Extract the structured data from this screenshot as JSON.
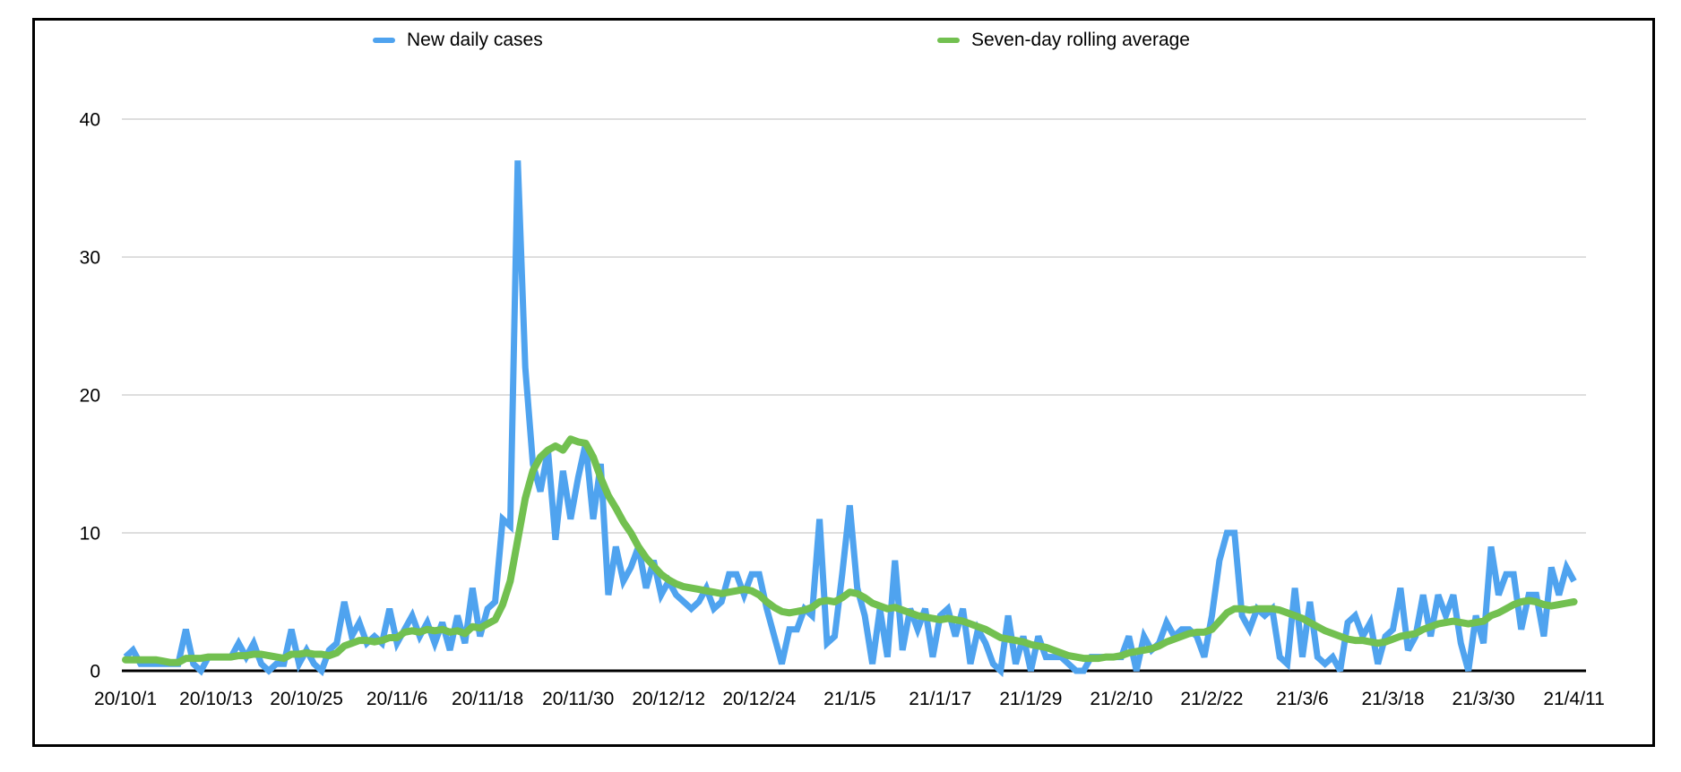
{
  "legend": {
    "daily_label": "New daily cases",
    "avg_label": "Seven-day rolling average"
  },
  "chart_data": {
    "type": "line",
    "x_start_date": "20/10/1",
    "x_end_date": "21/4/11",
    "x_tick_interval_days": 12,
    "x_tick_labels": [
      "20/10/1",
      "20/10/13",
      "20/10/25",
      "20/11/6",
      "20/11/18",
      "20/11/30",
      "20/12/12",
      "20/12/24",
      "21/1/5",
      "21/1/17",
      "21/1/29",
      "21/2/10",
      "21/2/22",
      "21/3/6",
      "21/3/18",
      "21/3/30",
      "21/4/11"
    ],
    "y_ticks": [
      0,
      10,
      20,
      30,
      40
    ],
    "ylim": [
      0,
      43.5
    ],
    "grid": "horizontal",
    "legend_position": "top",
    "background": "#ffffff",
    "gridline_color": "#d4d4d4",
    "axis_color": "#000000",
    "series": [
      {
        "name": "New daily cases",
        "color": "#4fa3ef",
        "values": [
          1,
          1.5,
          0.5,
          0.5,
          0.5,
          0.5,
          0.5,
          0.5,
          3,
          0.5,
          0,
          1,
          1,
          1,
          1,
          2,
          1,
          2,
          0.5,
          0,
          0.5,
          0.5,
          3,
          0.5,
          1.5,
          0.5,
          0,
          1.5,
          2,
          5,
          2.5,
          3.5,
          2,
          2.5,
          2,
          4.5,
          2,
          3,
          4,
          2.5,
          3.5,
          2,
          3.5,
          1.5,
          4,
          2,
          6,
          2.5,
          4.5,
          5,
          11,
          10.5,
          37,
          22,
          15,
          13,
          16,
          9.5,
          14.5,
          11,
          14,
          16.5,
          11,
          15,
          5.5,
          9,
          6.5,
          7.5,
          9,
          6,
          8,
          5.5,
          6.5,
          5.5,
          5,
          4.5,
          5,
          6,
          4.5,
          5,
          7,
          7,
          5.5,
          7,
          7,
          4.5,
          2.5,
          0.5,
          3,
          3,
          4.5,
          4,
          11,
          2,
          2.5,
          7,
          12,
          6,
          4,
          0.5,
          4.5,
          1,
          8,
          1.5,
          4.5,
          3,
          4.5,
          1,
          4,
          4.5,
          2.5,
          4.5,
          0.5,
          3,
          2,
          0.5,
          0,
          4,
          0.5,
          2.5,
          0,
          2.5,
          1,
          1,
          1,
          0.5,
          0,
          0,
          1,
          1,
          1,
          1,
          1,
          2.5,
          0,
          2.5,
          1.5,
          2,
          3.5,
          2.5,
          3,
          3,
          2.5,
          1,
          4,
          8,
          10,
          10,
          4,
          3,
          4.5,
          4,
          4.5,
          1,
          0.5,
          6,
          1,
          5,
          1,
          0.5,
          1,
          0,
          3.5,
          4,
          2.5,
          3.5,
          0.5,
          2.5,
          3,
          6,
          1.5,
          2.5,
          5.5,
          2.5,
          5.5,
          4,
          5.5,
          2,
          0,
          4,
          2,
          9,
          5.5,
          7,
          7,
          3,
          5.5,
          5.5,
          2.5,
          7.5,
          5.5,
          7.5,
          6.5
        ]
      },
      {
        "name": "Seven-day rolling average",
        "color": "#72c050",
        "values": [
          0.8,
          0.8,
          0.8,
          0.8,
          0.8,
          0.7,
          0.6,
          0.6,
          0.9,
          0.9,
          0.9,
          1.0,
          1.0,
          1.0,
          1.0,
          1.1,
          1.1,
          1.2,
          1.2,
          1.1,
          1.0,
          0.9,
          1.2,
          1.2,
          1.3,
          1.2,
          1.2,
          1.1,
          1.3,
          1.8,
          2.0,
          2.2,
          2.2,
          2.1,
          2.2,
          2.4,
          2.4,
          2.8,
          2.9,
          2.8,
          3.0,
          2.9,
          3.0,
          2.8,
          2.9,
          2.7,
          3.2,
          3.1,
          3.4,
          3.7,
          4.8,
          6.5,
          9.5,
          12.5,
          14.5,
          15.5,
          16.0,
          16.3,
          16.0,
          16.8,
          16.6,
          16.5,
          15.5,
          14.0,
          12.7,
          11.8,
          10.8,
          10.0,
          9.0,
          8.2,
          7.6,
          7.0,
          6.6,
          6.3,
          6.1,
          6.0,
          5.9,
          5.8,
          5.7,
          5.6,
          5.7,
          5.8,
          5.9,
          5.8,
          5.5,
          5.0,
          4.6,
          4.3,
          4.2,
          4.3,
          4.4,
          4.6,
          5.0,
          5.1,
          5.0,
          5.3,
          5.7,
          5.6,
          5.3,
          4.9,
          4.7,
          4.5,
          4.6,
          4.4,
          4.2,
          4.0,
          3.9,
          3.8,
          3.7,
          3.8,
          3.7,
          3.6,
          3.4,
          3.2,
          3.0,
          2.7,
          2.4,
          2.3,
          2.2,
          2.1,
          1.9,
          1.8,
          1.7,
          1.5,
          1.3,
          1.1,
          1.0,
          0.9,
          0.9,
          0.9,
          1.0,
          1.0,
          1.1,
          1.3,
          1.4,
          1.5,
          1.6,
          1.8,
          2.1,
          2.3,
          2.5,
          2.7,
          2.8,
          2.8,
          3.0,
          3.6,
          4.2,
          4.5,
          4.5,
          4.4,
          4.5,
          4.5,
          4.5,
          4.4,
          4.2,
          4.0,
          3.8,
          3.5,
          3.2,
          2.9,
          2.7,
          2.5,
          2.3,
          2.2,
          2.2,
          2.1,
          2.0,
          2.1,
          2.3,
          2.5,
          2.6,
          2.7,
          3.0,
          3.2,
          3.4,
          3.5,
          3.6,
          3.5,
          3.4,
          3.5,
          3.6,
          4.0,
          4.2,
          4.5,
          4.8,
          5.0,
          5.1,
          5.0,
          4.8,
          4.7,
          4.8,
          4.9,
          5.0
        ]
      }
    ]
  }
}
